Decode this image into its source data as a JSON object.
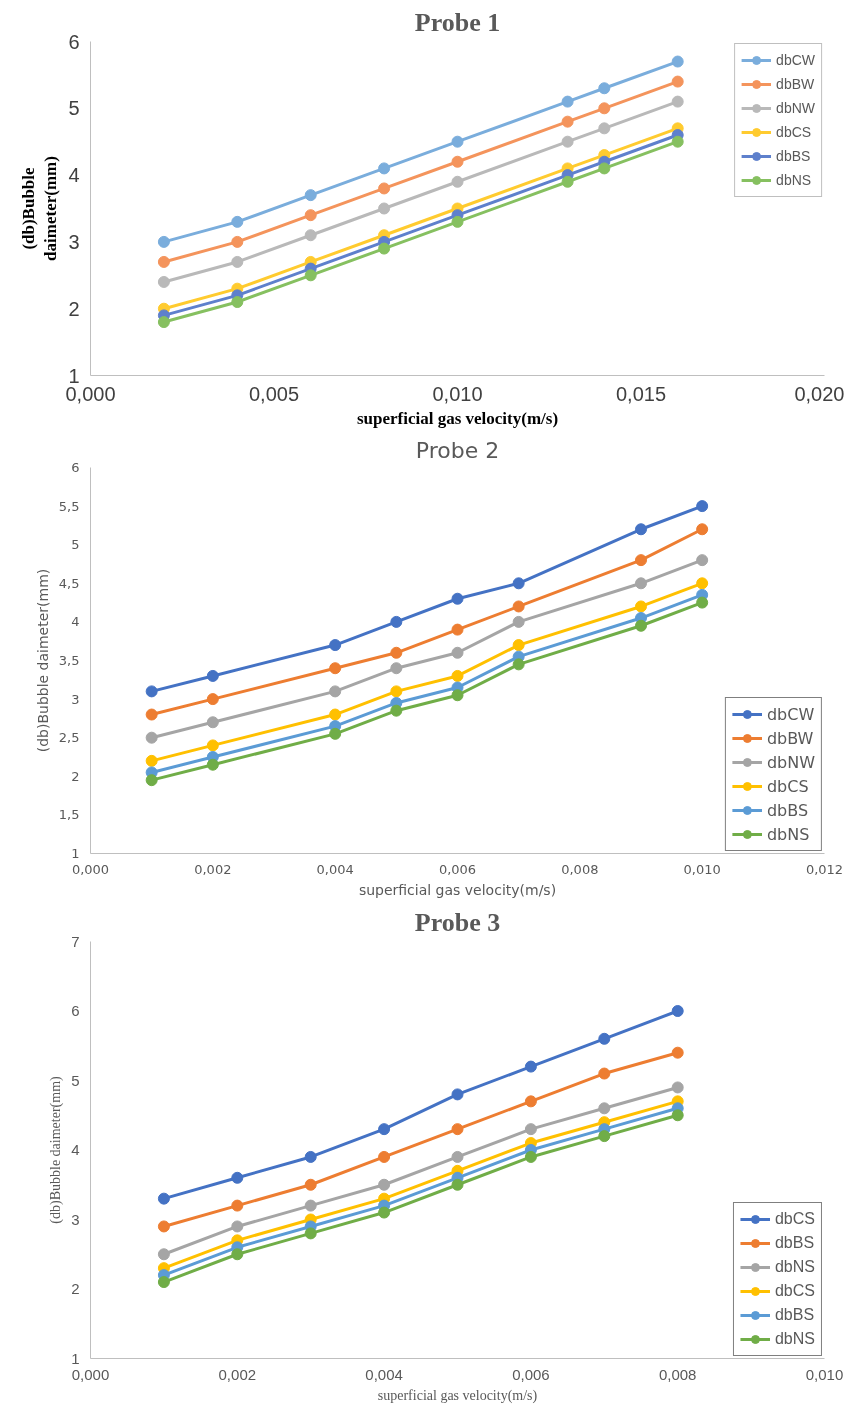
{
  "chart_data": [
    {
      "type": "line",
      "title": "Probe 1",
      "xlabel": "superficial gas velocity(m/s)",
      "ylabel": "(db)Bubble\ndaimeter(mm)",
      "marker": "circle",
      "line_style": "solid",
      "legend": "top right",
      "x": [
        0.002,
        0.004,
        0.006,
        0.008,
        0.01,
        0.013,
        0.014,
        0.016
      ],
      "xlim": [
        0,
        0.02
      ],
      "xticks": [
        {
          "value": 0,
          "label": "0,000"
        },
        {
          "value": 0.005,
          "label": "0,005"
        },
        {
          "value": 0.01,
          "label": "0,010"
        },
        {
          "value": 0.015,
          "label": "0,015"
        },
        {
          "value": 0.02,
          "label": "0,020"
        }
      ],
      "ylim": [
        1,
        6
      ],
      "yticks": [
        1,
        2,
        3,
        4,
        5,
        6
      ],
      "series": [
        {
          "name": "dbCW",
          "color": "#7aaddc",
          "values": [
            3.0,
            3.3,
            3.7,
            4.1,
            4.5,
            5.1,
            5.3,
            5.7
          ]
        },
        {
          "name": "dbBW",
          "color": "#f4945c",
          "values": [
            2.7,
            3.0,
            3.4,
            3.8,
            4.2,
            4.8,
            5.0,
            5.4
          ]
        },
        {
          "name": "dbNW",
          "color": "#b9b9b9",
          "values": [
            2.4,
            2.7,
            3.1,
            3.5,
            3.9,
            4.5,
            4.7,
            5.1
          ]
        },
        {
          "name": "dbCS",
          "color": "#ffcb2f",
          "values": [
            2.0,
            2.3,
            2.7,
            3.1,
            3.5,
            4.1,
            4.3,
            4.7
          ]
        },
        {
          "name": "dbBS",
          "color": "#5e80cc",
          "values": [
            1.9,
            2.2,
            2.6,
            3.0,
            3.4,
            4.0,
            4.2,
            4.6
          ]
        },
        {
          "name": "dbNS",
          "color": "#86c060",
          "values": [
            1.8,
            2.1,
            2.5,
            2.9,
            3.3,
            3.9,
            4.1,
            4.5
          ]
        }
      ]
    },
    {
      "type": "line",
      "title": "Probe 2",
      "xlabel": "superficial gas velocity(m/s)",
      "ylabel": "(db)Bubble daimeter(mm)",
      "marker": "circle",
      "line_style": "solid",
      "legend": "bottom right",
      "x": [
        0.001,
        0.002,
        0.004,
        0.005,
        0.006,
        0.007,
        0.009,
        0.01
      ],
      "xlim": [
        0,
        0.012
      ],
      "xticks": [
        {
          "value": 0,
          "label": "0,000"
        },
        {
          "value": 0.002,
          "label": "0,002"
        },
        {
          "value": 0.004,
          "label": "0,004"
        },
        {
          "value": 0.006,
          "label": "0,006"
        },
        {
          "value": 0.008,
          "label": "0,008"
        },
        {
          "value": 0.01,
          "label": "0,010"
        },
        {
          "value": 0.012,
          "label": "0,012"
        }
      ],
      "ylim": [
        1,
        6
      ],
      "yticks": [
        1,
        {
          "value": 1.5,
          "label": "1,5"
        },
        2,
        {
          "value": 2.5,
          "label": "2,5"
        },
        3,
        {
          "value": 3.5,
          "label": "3,5"
        },
        4,
        {
          "value": 4.5,
          "label": "4,5"
        },
        5,
        {
          "value": 5.5,
          "label": "5,5"
        },
        6
      ],
      "series": [
        {
          "name": "dbCW",
          "color": "#4472c4",
          "values": [
            3.1,
            3.3,
            3.7,
            4.0,
            4.3,
            4.5,
            5.2,
            5.5
          ]
        },
        {
          "name": "dbBW",
          "color": "#ed7d31",
          "values": [
            2.8,
            3.0,
            3.4,
            3.6,
            3.9,
            4.2,
            4.8,
            5.2
          ]
        },
        {
          "name": "dbNW",
          "color": "#a5a5a5",
          "values": [
            2.5,
            2.7,
            3.1,
            3.4,
            3.6,
            4.0,
            4.5,
            4.8
          ]
        },
        {
          "name": "dbCS",
          "color": "#ffc000",
          "values": [
            2.2,
            2.4,
            2.8,
            3.1,
            3.3,
            3.7,
            4.2,
            4.5
          ]
        },
        {
          "name": "dbBS",
          "color": "#5b9bd5",
          "values": [
            2.05,
            2.25,
            2.65,
            2.95,
            3.15,
            3.55,
            4.05,
            4.35
          ]
        },
        {
          "name": "dbNS",
          "color": "#70ad47",
          "values": [
            1.95,
            2.15,
            2.55,
            2.85,
            3.05,
            3.45,
            3.95,
            4.25
          ]
        }
      ]
    },
    {
      "type": "line",
      "title": "Probe 3",
      "xlabel": "superficial gas velocity(m/s)",
      "ylabel": "(db)Bubble daimeter(mm)",
      "marker": "circle",
      "line_style": "solid",
      "legend": "bottom right",
      "x": [
        0.001,
        0.002,
        0.003,
        0.004,
        0.005,
        0.006,
        0.007,
        0.008
      ],
      "xlim": [
        0,
        0.01
      ],
      "xticks": [
        {
          "value": 0,
          "label": "0,000"
        },
        {
          "value": 0.002,
          "label": "0,002"
        },
        {
          "value": 0.004,
          "label": "0,004"
        },
        {
          "value": 0.006,
          "label": "0,006"
        },
        {
          "value": 0.008,
          "label": "0,008"
        },
        {
          "value": 0.01,
          "label": "0,010"
        }
      ],
      "ylim": [
        1,
        7
      ],
      "yticks": [
        1,
        2,
        3,
        4,
        5,
        6,
        7
      ],
      "series": [
        {
          "name": "dbCS",
          "color": "#4472c4",
          "values": [
            3.3,
            3.6,
            3.9,
            4.3,
            4.8,
            5.2,
            5.6,
            6.0
          ]
        },
        {
          "name": "dbBS",
          "color": "#ed7d31",
          "values": [
            2.9,
            3.2,
            3.5,
            3.9,
            4.3,
            4.7,
            5.1,
            5.4
          ]
        },
        {
          "name": "dbNS",
          "color": "#a5a5a5",
          "values": [
            2.5,
            2.9,
            3.2,
            3.5,
            3.9,
            4.3,
            4.6,
            4.9
          ]
        },
        {
          "name": "dbCS",
          "color": "#ffc000",
          "values": [
            2.3,
            2.7,
            3.0,
            3.3,
            3.7,
            4.1,
            4.4,
            4.7
          ]
        },
        {
          "name": "dbBS",
          "color": "#5b9bd5",
          "values": [
            2.2,
            2.6,
            2.9,
            3.2,
            3.6,
            4.0,
            4.3,
            4.6
          ]
        },
        {
          "name": "dbNS",
          "color": "#70ad47",
          "values": [
            2.1,
            2.5,
            2.8,
            3.1,
            3.5,
            3.9,
            4.2,
            4.5
          ]
        }
      ]
    }
  ]
}
